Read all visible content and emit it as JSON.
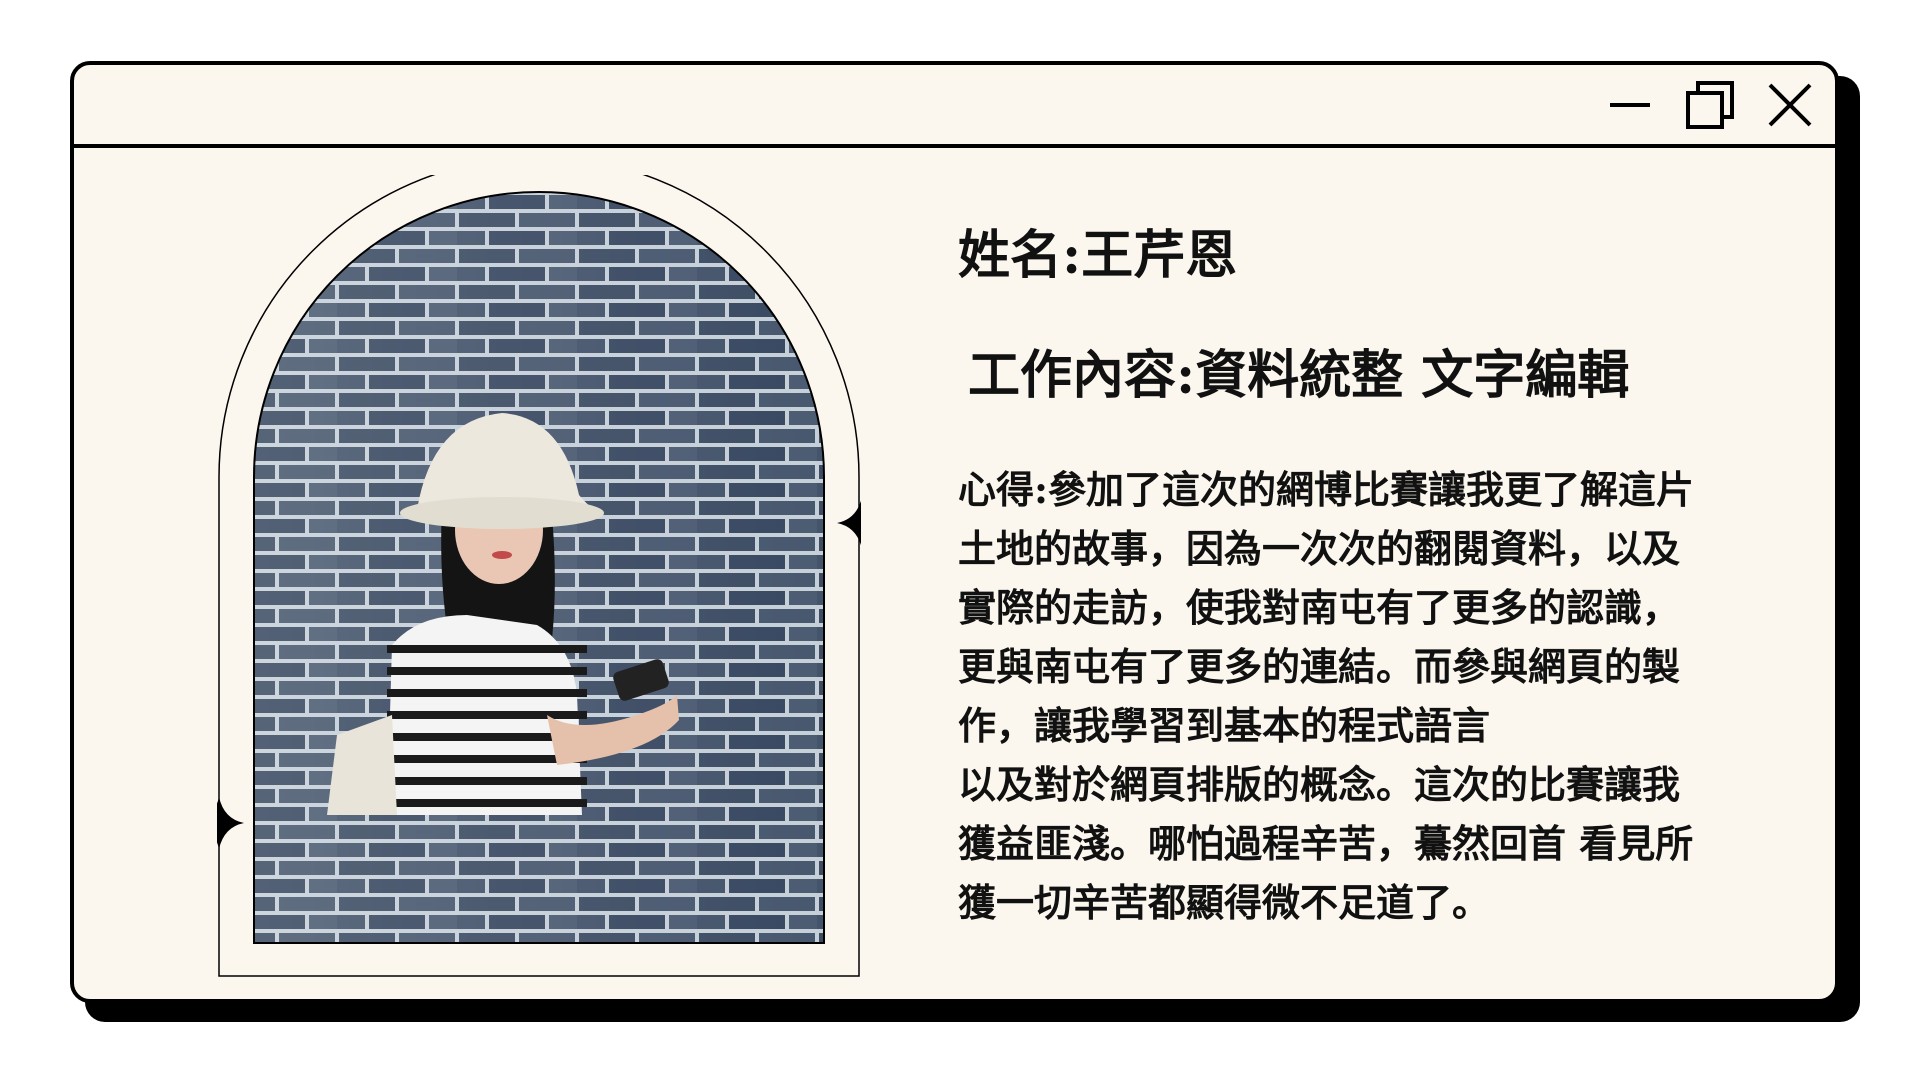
{
  "window": {
    "controls": {
      "minimize_icon": "minimize-icon",
      "maximize_icon": "maximize-icon",
      "close_icon": "close-icon"
    }
  },
  "profile": {
    "name_label": "姓名:",
    "name_value": "王芹恩",
    "work_label": "工作內容:",
    "work_value": "資料統整 文字編輯",
    "reflection_lines": [
      "心得:參加了這次的網博比賽讓我更了解這片",
      "土地的故事，因為一次次的翻閱資料，以及",
      "實際的走訪，使我對南屯有了更多的認識，",
      "更與南屯有了更多的連結。而參與網頁的製",
      "作，讓我學習到基本的程式語言",
      "以及對於網頁排版的概念。這次的比賽讓我",
      "獲益匪淺。哪怕過程辛苦，驀然回首 看見所",
      "獲一切辛苦都顯得微不足道了。"
    ]
  },
  "colors": {
    "background": "#fbf7ee",
    "border": "#000000",
    "brick": "#3e4f66",
    "mortar": "#c9d3dc"
  }
}
